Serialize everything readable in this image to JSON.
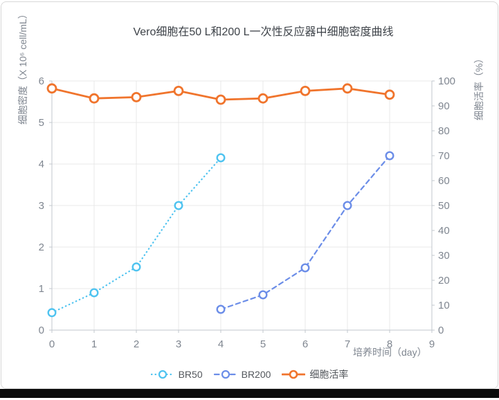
{
  "window": {
    "bottom_bar_color": "#0b0b0b"
  },
  "chart_data": {
    "type": "line",
    "title": "Vero细胞在50 L和200 L一次性反应器中细胞密度曲线",
    "x_axis": {
      "label": "培养时间（day）",
      "min": 0,
      "max": 9,
      "ticks": [
        0,
        1,
        2,
        3,
        4,
        5,
        6,
        7,
        8,
        9
      ]
    },
    "left_axis": {
      "label": "细胞密度（X 10⁶ cell/mL）",
      "min": 0,
      "max": 6,
      "ticks": [
        0,
        1,
        2,
        3,
        4,
        5,
        6
      ]
    },
    "right_axis": {
      "label": "细胞活率（%）",
      "min": 0,
      "max": 100,
      "ticks": [
        0,
        10,
        20,
        30,
        40,
        50,
        60,
        70,
        80,
        90,
        100
      ]
    },
    "grid": true,
    "legend_position": "bottom",
    "series": [
      {
        "name": "BR50",
        "axis": "left",
        "line_style": "dotted",
        "color": "#4ec3f0",
        "x": [
          0,
          1,
          2,
          3,
          4
        ],
        "values": [
          0.42,
          0.9,
          1.52,
          3.0,
          4.15
        ]
      },
      {
        "name": "BR200",
        "axis": "left",
        "line_style": "dashed",
        "color": "#6b8de8",
        "x": [
          4,
          5,
          6,
          7,
          8
        ],
        "values": [
          0.5,
          0.85,
          1.5,
          3.0,
          4.2
        ]
      },
      {
        "name": "细胞活率",
        "axis": "right",
        "line_style": "solid",
        "color": "#f0742c",
        "x": [
          0,
          1,
          2,
          3,
          4,
          5,
          6,
          7,
          8
        ],
        "values": [
          97,
          93,
          93.5,
          96,
          92.5,
          93,
          96,
          97,
          94.5
        ]
      }
    ],
    "colors": {
      "grid_line": "#e8e8e8",
      "axis_line": "#c2c7ce",
      "tick_text": "#7f8690",
      "title_text": "#3d4248",
      "legend_text": "#53575c"
    }
  }
}
